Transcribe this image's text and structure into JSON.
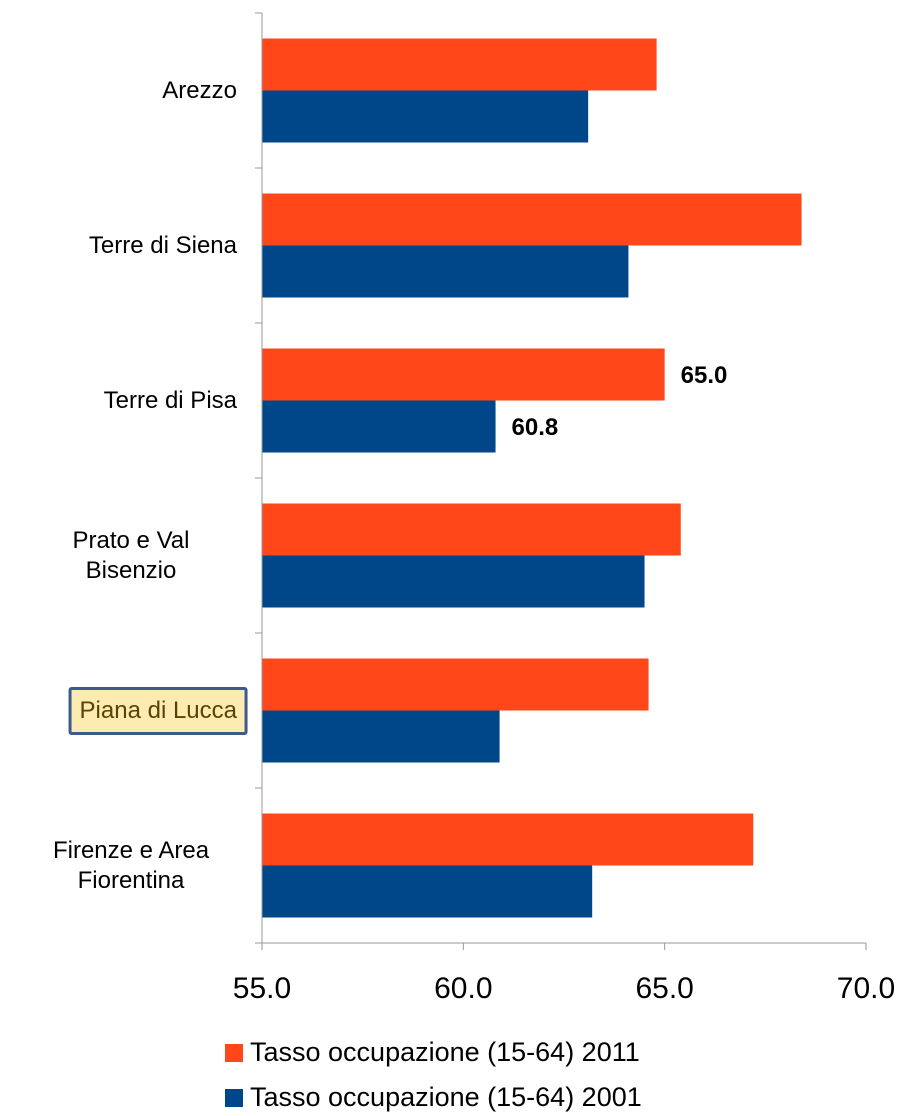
{
  "chart_data": {
    "type": "hbar",
    "categories": [
      "Arezzo",
      "Terre di Siena",
      "Terre di Pisa",
      "Prato e Val Bisenzio",
      "Piana di Lucca",
      "Firenze e Area Fiorentina"
    ],
    "series": [
      {
        "name": "Tasso occupazione (15-64) 2011",
        "color": "#ff4719",
        "values": [
          64.8,
          68.4,
          65.0,
          65.4,
          64.6,
          67.2
        ],
        "value_labels": [
          null,
          null,
          "65.0",
          null,
          null,
          null
        ]
      },
      {
        "name": "Tasso occupazione (15-64) 2001",
        "color": "#00478a",
        "values": [
          63.1,
          64.1,
          60.8,
          64.5,
          60.9,
          63.2
        ],
        "value_labels": [
          null,
          null,
          "60.8",
          null,
          null,
          null
        ]
      }
    ],
    "xlim": [
      55,
      70
    ],
    "xticks": [
      {
        "value": 55,
        "label": "55.0"
      },
      {
        "value": 60,
        "label": "60.0"
      },
      {
        "value": 65,
        "label": "65.0"
      },
      {
        "value": 70,
        "label": "70.0"
      }
    ],
    "highlight_index": 4,
    "grid": false,
    "legend": "bottom"
  }
}
